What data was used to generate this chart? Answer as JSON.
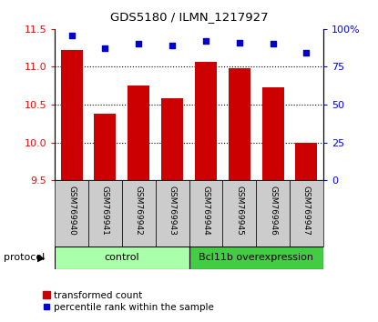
{
  "title": "GDS5180 / ILMN_1217927",
  "samples": [
    "GSM769940",
    "GSM769941",
    "GSM769942",
    "GSM769943",
    "GSM769944",
    "GSM769945",
    "GSM769946",
    "GSM769947"
  ],
  "transformed_counts": [
    11.22,
    10.38,
    10.75,
    10.58,
    11.06,
    10.98,
    10.73,
    9.99
  ],
  "percentile_ranks": [
    96,
    87,
    90,
    89,
    92,
    91,
    90,
    84
  ],
  "ylim_left": [
    9.5,
    11.5
  ],
  "ylim_right": [
    0,
    100
  ],
  "yticks_left": [
    9.5,
    10.0,
    10.5,
    11.0,
    11.5
  ],
  "yticks_right": [
    0,
    25,
    50,
    75,
    100
  ],
  "yticklabels_right": [
    "0",
    "25",
    "50",
    "75",
    "100%"
  ],
  "bar_color": "#cc0000",
  "dot_color": "#0000cc",
  "bar_bottom": 9.5,
  "control_samples": 4,
  "control_label": "control",
  "treatment_label": "Bcl11b overexpression",
  "control_color": "#aaffaa",
  "treatment_color": "#44cc44",
  "protocol_label": "protocol",
  "legend_bar_label": "transformed count",
  "legend_dot_label": "percentile rank within the sample",
  "grid_color": "black",
  "label_bg_color": "#cccccc"
}
